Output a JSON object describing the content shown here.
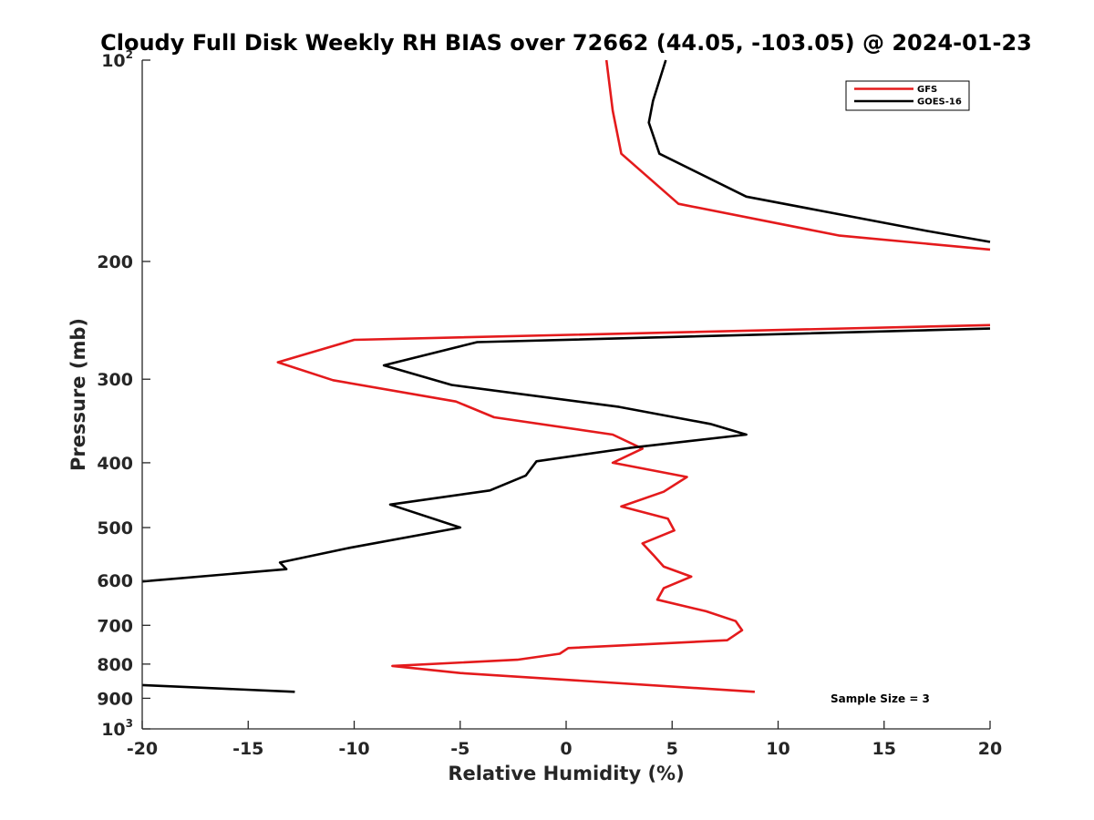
{
  "chart_data": {
    "type": "line",
    "title": "Cloudy Full Disk Weekly RH BIAS over 72662 (44.05, -103.05) @ 2024-01-23",
    "xlabel": "Relative Humidity (%)",
    "ylabel": "Pressure (mb)",
    "xlim": [
      -20,
      20
    ],
    "ylim": [
      100,
      1000
    ],
    "yscale": "log",
    "y_reversed": true,
    "x_ticks": [
      "-20",
      "-15",
      "-10",
      "-5",
      "0",
      "5",
      "10",
      "15",
      "20"
    ],
    "y_ticks": [
      {
        "value": 100,
        "base": "10",
        "exp": "2"
      },
      {
        "value": 200,
        "label": "200"
      },
      {
        "value": 300,
        "label": "300"
      },
      {
        "value": 400,
        "label": "400"
      },
      {
        "value": 500,
        "label": "500"
      },
      {
        "value": 600,
        "label": "600"
      },
      {
        "value": 700,
        "label": "700"
      },
      {
        "value": 800,
        "label": "800"
      },
      {
        "value": 900,
        "label": "900"
      },
      {
        "value": 1000,
        "base": "10",
        "exp": "3"
      }
    ],
    "grid": false,
    "legend_position": "top-right",
    "annotation": "Sample Size = 3",
    "series": [
      {
        "name": "GFS",
        "color": "#e41a1c",
        "segments": [
          [
            [
              1.9,
              100
            ],
            [
              2.2,
              119
            ],
            [
              2.6,
              138
            ],
            [
              5.3,
              164
            ],
            [
              12.9,
              183
            ],
            [
              20.0,
              192
            ]
          ],
          [
            [
              20.0,
              249
            ],
            [
              -10.0,
              262
            ],
            [
              -13.6,
              283
            ],
            [
              -11.0,
              301
            ],
            [
              -5.2,
              324
            ],
            [
              -3.4,
              342
            ],
            [
              2.2,
              363
            ],
            [
              3.6,
              381
            ],
            [
              2.2,
              400
            ],
            [
              5.7,
              420
            ],
            [
              4.6,
              442
            ],
            [
              2.6,
              465
            ],
            [
              4.8,
              485
            ],
            [
              5.1,
              505
            ],
            [
              3.6,
              528
            ],
            [
              4.1,
              549
            ],
            [
              4.6,
              572
            ],
            [
              5.9,
              592
            ],
            [
              4.6,
              616
            ],
            [
              4.3,
              641
            ],
            [
              6.6,
              667
            ],
            [
              8.0,
              690
            ],
            [
              8.3,
              712
            ],
            [
              7.6,
              737
            ],
            [
              0.1,
              757
            ],
            [
              -0.3,
              772
            ],
            [
              -2.3,
              788
            ],
            [
              -8.2,
              805
            ],
            [
              -5.0,
              825
            ],
            [
              8.9,
              880
            ]
          ]
        ]
      },
      {
        "name": "GOES-16",
        "color": "#000000",
        "segments": [
          [
            [
              4.7,
              100
            ],
            [
              4.1,
              115
            ],
            [
              3.9,
              124
            ],
            [
              4.4,
              138
            ],
            [
              8.5,
              160
            ],
            [
              17.0,
              180
            ],
            [
              20.0,
              187
            ]
          ],
          [
            [
              20.0,
              252
            ],
            [
              -4.2,
              264
            ],
            [
              -8.6,
              286
            ],
            [
              -5.4,
              306
            ],
            [
              2.5,
              330
            ],
            [
              6.8,
              350
            ],
            [
              8.5,
              363
            ],
            [
              3.0,
              380
            ],
            [
              -1.4,
              398
            ],
            [
              -1.9,
              418
            ],
            [
              -3.6,
              440
            ],
            [
              -8.3,
              462
            ],
            [
              -5.0,
              500
            ],
            [
              -10.2,
              536
            ],
            [
              -13.5,
              564
            ],
            [
              -13.2,
              577
            ],
            [
              -20.0,
              602
            ]
          ],
          [
            [
              -20.0,
              860
            ],
            [
              -17.9,
              866
            ],
            [
              -12.8,
              880
            ]
          ]
        ]
      }
    ]
  }
}
